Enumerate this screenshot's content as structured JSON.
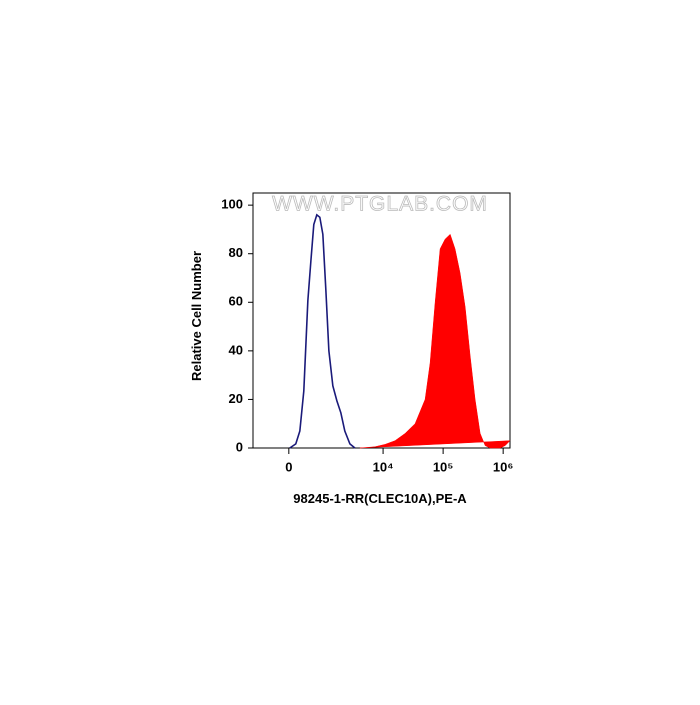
{
  "chart_data": {
    "type": "histogram-overlay",
    "watermark": "WWW.PTGLAB.COM",
    "xlabel": "98245-1-RR(CLEC10A),PE-A",
    "ylabel": "Relative Cell Number",
    "xscale": "symlog",
    "linthresh": 10000,
    "linscale": 1.57,
    "xlim": [
      -3800,
      1300000
    ],
    "xticks": [
      0,
      {
        "value": 10000,
        "label": "10⁴"
      },
      {
        "value": 100000,
        "label": "10⁵"
      },
      {
        "value": 1000000,
        "label": "10⁶"
      }
    ],
    "ylim": [
      0,
      105
    ],
    "yticks": [
      0,
      20,
      40,
      60,
      80,
      100
    ],
    "series": [
      {
        "color": "#1a1a7a",
        "fill": false,
        "x": [
          100,
          740,
          1170,
          1590,
          2020,
          2340,
          2650,
          2970,
          3290,
          3610,
          3930,
          4250,
          4670,
          5100,
          5520,
          5940,
          6480,
          7010
        ],
        "values": [
          0,
          1.7,
          7,
          23.5,
          60.7,
          77,
          92,
          96,
          95,
          88,
          65,
          40,
          25.6,
          19.4,
          14.5,
          7,
          1.7,
          0
        ]
      },
      {
        "color": "#ff0000",
        "fill": true,
        "x": [
          7540,
          9130,
          10800,
          15800,
          23300,
          34100,
          50100,
          60700,
          73600,
          89100,
          108000,
          131000,
          158000,
          192000,
          233000,
          282000,
          341000,
          414000,
          501000,
          607000,
          891000,
          1080000,
          1300000
        ],
        "values": [
          0,
          0.5,
          1.5,
          3,
          6,
          10,
          20,
          35,
          60,
          82,
          86,
          88,
          82,
          72,
          58,
          38,
          20,
          6,
          1,
          0,
          0,
          1,
          3
        ]
      }
    ]
  }
}
